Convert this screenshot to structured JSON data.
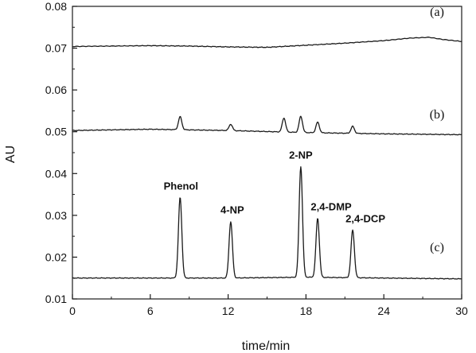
{
  "chart_data": {
    "type": "line",
    "title": "",
    "xlabel": "time/min",
    "ylabel": "AU",
    "xlim": [
      0,
      30
    ],
    "ylim": [
      0.01,
      0.08
    ],
    "x_ticks": [
      0,
      6,
      12,
      18,
      24,
      30
    ],
    "y_ticks": [
      0.01,
      0.02,
      0.03,
      0.04,
      0.05,
      0.06,
      0.07,
      0.08
    ],
    "x_tick_labels": [
      "0",
      "6",
      "12",
      "18",
      "24",
      "30"
    ],
    "y_tick_labels": [
      "0.01",
      "0.02",
      "0.03",
      "0.04",
      "0.05",
      "0.06",
      "0.07",
      "0.08"
    ],
    "grid": false,
    "series": [
      {
        "label": "(a)",
        "points": [
          [
            0,
            0.0704
          ],
          [
            3,
            0.0705
          ],
          [
            6,
            0.0706
          ],
          [
            9,
            0.0705
          ],
          [
            12,
            0.0703
          ],
          [
            15,
            0.0702
          ],
          [
            18,
            0.0707
          ],
          [
            21,
            0.0712
          ],
          [
            24,
            0.0718
          ],
          [
            26,
            0.0724
          ],
          [
            27.5,
            0.0726
          ],
          [
            28.5,
            0.0721
          ],
          [
            30,
            0.0716
          ]
        ],
        "peaks": []
      },
      {
        "label": "(b)",
        "baseline": [
          [
            0,
            0.0503
          ],
          [
            6,
            0.0506
          ],
          [
            12,
            0.0503
          ],
          [
            18,
            0.0498
          ],
          [
            24,
            0.0495
          ],
          [
            30,
            0.0493
          ]
        ],
        "peaks": [
          {
            "x": 8.3,
            "y": 0.0536
          },
          {
            "x": 12.2,
            "y": 0.0518
          },
          {
            "x": 16.3,
            "y": 0.0533
          },
          {
            "x": 17.6,
            "y": 0.0537
          },
          {
            "x": 18.9,
            "y": 0.0523
          },
          {
            "x": 21.6,
            "y": 0.0513
          }
        ]
      },
      {
        "label": "(c)",
        "baseline": [
          [
            0,
            0.015
          ],
          [
            6,
            0.015
          ],
          [
            12,
            0.015
          ],
          [
            18,
            0.0152
          ],
          [
            24,
            0.015
          ],
          [
            30,
            0.0148
          ]
        ],
        "peaks": [
          {
            "x": 8.3,
            "y": 0.0343,
            "label": "Phenol"
          },
          {
            "x": 12.2,
            "y": 0.0285,
            "label": "4-NP"
          },
          {
            "x": 17.6,
            "y": 0.0417,
            "label": "2-NP"
          },
          {
            "x": 18.9,
            "y": 0.0293,
            "label": "2,4-DMP"
          },
          {
            "x": 21.6,
            "y": 0.0265,
            "label": "2,4-DCP"
          }
        ]
      }
    ]
  }
}
